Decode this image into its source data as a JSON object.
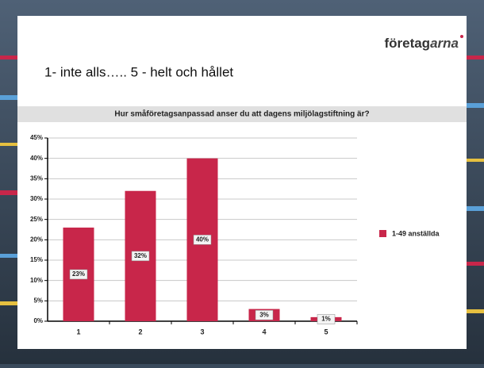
{
  "slide": {
    "logo_main": "företag",
    "logo_accent": "arna",
    "heading": "1- inte alls….. 5 - helt och hållet"
  },
  "chart_data": {
    "type": "bar",
    "title": "Hur småföretagsanpassad anser du att dagens miljölagstiftning är?",
    "categories": [
      "1",
      "2",
      "3",
      "4",
      "5"
    ],
    "series": [
      {
        "name": "1-49 anställda",
        "color": "#c8264a",
        "values": [
          23,
          32,
          40,
          3,
          1
        ],
        "value_labels": [
          "23%",
          "32%",
          "40%",
          "3%",
          "1%"
        ]
      }
    ],
    "ylim": [
      0,
      45
    ],
    "yticks": [
      {
        "value": 0,
        "label": "0%"
      },
      {
        "value": 5,
        "label": "5%"
      },
      {
        "value": 10,
        "label": "10%"
      },
      {
        "value": 15,
        "label": "15%"
      },
      {
        "value": 20,
        "label": "20%"
      },
      {
        "value": 25,
        "label": "25%"
      },
      {
        "value": 30,
        "label": "30%"
      },
      {
        "value": 35,
        "label": "35%"
      },
      {
        "value": 40,
        "label": "40%"
      },
      {
        "value": 45,
        "label": "45%"
      }
    ],
    "grid": true,
    "legend": "right"
  }
}
